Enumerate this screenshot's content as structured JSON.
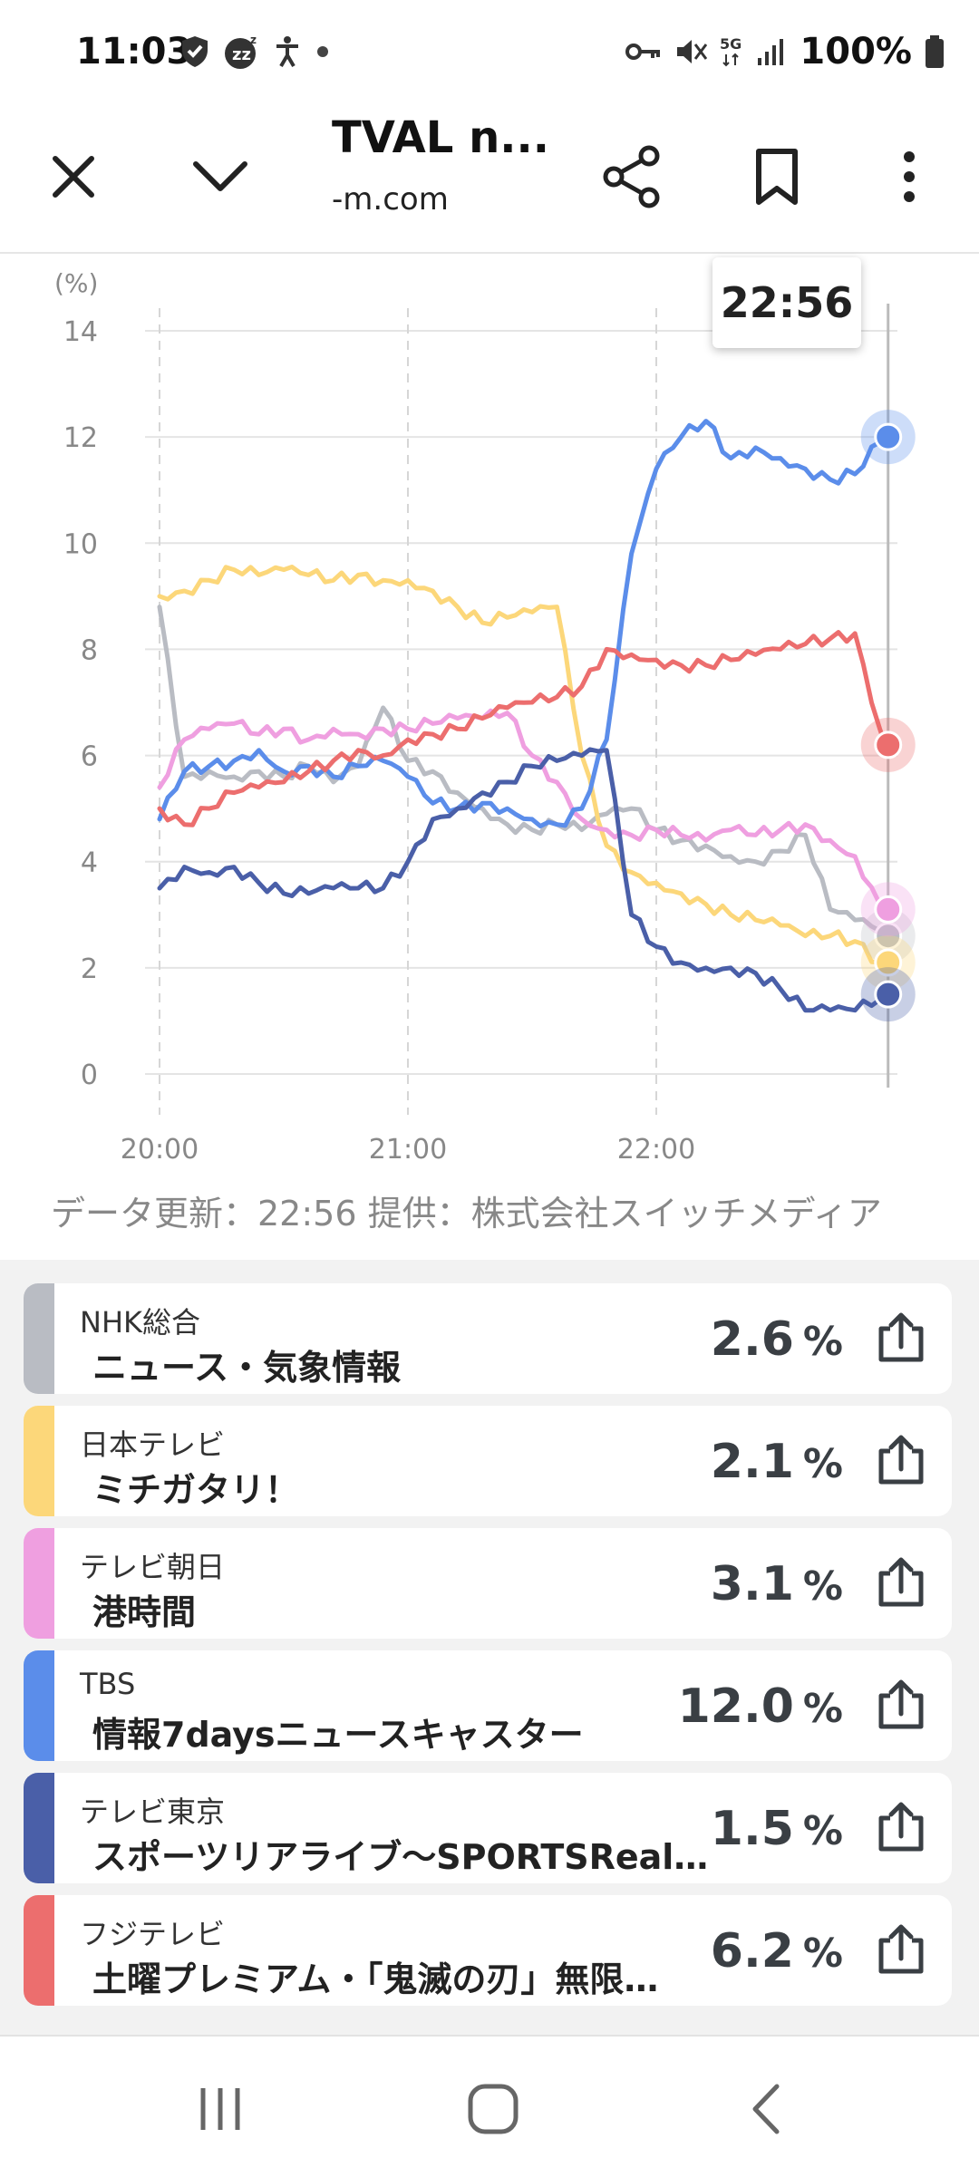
{
  "status_bar": {
    "time": "11:03",
    "battery_text": "100%",
    "left_icons": [
      "shield-icon",
      "sleep-mode-icon",
      "accessibility-icon",
      "dot-icon"
    ],
    "right_icons": [
      "key-icon",
      "mute-icon",
      "5g-icon",
      "signal-icon",
      "battery-icon"
    ]
  },
  "toolbar": {
    "title": "TVAL n...",
    "url": "-m.com",
    "icons": [
      "close-icon",
      "chevron-down-icon",
      "share-icon",
      "bookmark-icon",
      "more-icon"
    ]
  },
  "chart": {
    "tooltip_time": "22:56",
    "unit_label": "(%)",
    "source": "データ更新：22:56  提供：株式会社スイッチメディア"
  },
  "chart_data": {
    "type": "line",
    "ylabel": "(%)",
    "ylim": [
      0,
      14
    ],
    "yticks": [
      "0",
      "2",
      "4",
      "6",
      "8",
      "10",
      "12",
      "14"
    ],
    "xticks": [
      "20:00",
      "21:00",
      "22:00"
    ],
    "xlim_minutes": [
      -2,
      177
    ],
    "grid": true,
    "x": [
      0,
      6,
      12,
      18,
      24,
      30,
      36,
      42,
      48,
      54,
      60,
      66,
      72,
      78,
      84,
      90,
      96,
      102,
      108,
      114,
      120,
      126,
      132,
      138,
      144,
      150,
      156,
      162,
      168,
      174,
      176
    ],
    "series": [
      {
        "name": "NHK総合",
        "color": "#b9bcc3",
        "values": [
          8.8,
          5.6,
          5.7,
          5.6,
          5.7,
          5.6,
          5.8,
          5.5,
          5.8,
          6.9,
          5.9,
          5.7,
          5.3,
          5.0,
          4.7,
          4.6,
          4.7,
          4.6,
          4.9,
          5.0,
          4.6,
          4.4,
          4.3,
          4.1,
          4.0,
          4.2,
          4.5,
          3.1,
          2.9,
          2.7,
          2.6
        ]
      },
      {
        "name": "日本テレビ",
        "color": "#fcd77a",
        "values": [
          9.0,
          9.1,
          9.3,
          9.5,
          9.4,
          9.5,
          9.4,
          9.3,
          9.4,
          9.3,
          9.3,
          9.1,
          8.8,
          8.5,
          8.6,
          8.7,
          8.8,
          6.0,
          4.3,
          3.8,
          3.6,
          3.4,
          3.2,
          3.0,
          2.9,
          2.8,
          2.6,
          2.6,
          2.5,
          2.1,
          2.1
        ]
      },
      {
        "name": "テレビ朝日",
        "color": "#ef9fe0",
        "values": [
          5.4,
          6.3,
          6.5,
          6.6,
          6.4,
          6.5,
          6.3,
          6.5,
          6.4,
          6.5,
          6.5,
          6.6,
          6.7,
          6.7,
          6.8,
          6.0,
          5.5,
          4.8,
          4.6,
          4.5,
          4.6,
          4.5,
          4.4,
          4.6,
          4.5,
          4.6,
          4.7,
          4.4,
          4.1,
          3.2,
          3.1
        ]
      },
      {
        "name": "TBS",
        "color": "#5b8dea",
        "values": [
          4.8,
          5.7,
          5.8,
          5.9,
          6.1,
          5.7,
          5.8,
          5.6,
          5.8,
          5.9,
          5.6,
          5.1,
          5.0,
          5.1,
          5.0,
          4.8,
          4.7,
          5.0,
          6.3,
          9.8,
          11.4,
          12.0,
          12.3,
          11.6,
          11.8,
          11.6,
          11.4,
          11.2,
          11.3,
          11.9,
          12.0
        ]
      },
      {
        "name": "テレビ東京",
        "color": "#4a5fa8",
        "values": [
          3.5,
          3.9,
          3.8,
          3.9,
          3.6,
          3.4,
          3.4,
          3.5,
          3.5,
          3.5,
          4.0,
          4.8,
          5.0,
          5.3,
          5.5,
          5.8,
          5.9,
          6.0,
          6.1,
          3.0,
          2.4,
          2.1,
          2.0,
          2.0,
          1.9,
          1.6,
          1.2,
          1.2,
          1.2,
          1.4,
          1.5
        ]
      },
      {
        "name": "フジテレビ",
        "color": "#ec6e6e",
        "values": [
          5.0,
          4.7,
          5.0,
          5.3,
          5.4,
          5.5,
          5.7,
          5.9,
          6.1,
          6.0,
          6.3,
          6.4,
          6.5,
          6.7,
          6.9,
          7.0,
          7.1,
          7.3,
          8.0,
          7.9,
          7.8,
          7.7,
          7.7,
          7.8,
          7.9,
          8.0,
          8.1,
          8.2,
          8.3,
          6.5,
          6.2
        ]
      }
    ]
  },
  "list": {
    "items": [
      {
        "station": "NHK総合",
        "program": "ニュース・気象情報",
        "rating": "2.6",
        "unit": "%",
        "color": "#b9bcc3"
      },
      {
        "station": "日本テレビ",
        "program": "ミチガタリ！",
        "rating": "2.1",
        "unit": "%",
        "color": "#fcd77a"
      },
      {
        "station": "テレビ朝日",
        "program": "港時間",
        "rating": "3.1",
        "unit": "%",
        "color": "#ef9fe0"
      },
      {
        "station": "TBS",
        "program": "情報7daysニュースキャスター",
        "rating": "12.0",
        "unit": "%",
        "color": "#5b8dea"
      },
      {
        "station": "テレビ東京",
        "program": "スポーツリアライブ〜SPORTSReal…",
        "rating": "1.5",
        "unit": "%",
        "color": "#4a5fa8"
      },
      {
        "station": "フジテレビ",
        "program": "土曜プレミアム・「鬼滅の刃」無限…",
        "rating": "6.2",
        "unit": "%",
        "color": "#ec6e6e"
      }
    ]
  },
  "nav_bar": {
    "icons": [
      "recent-apps-icon",
      "home-icon",
      "back-icon"
    ]
  }
}
